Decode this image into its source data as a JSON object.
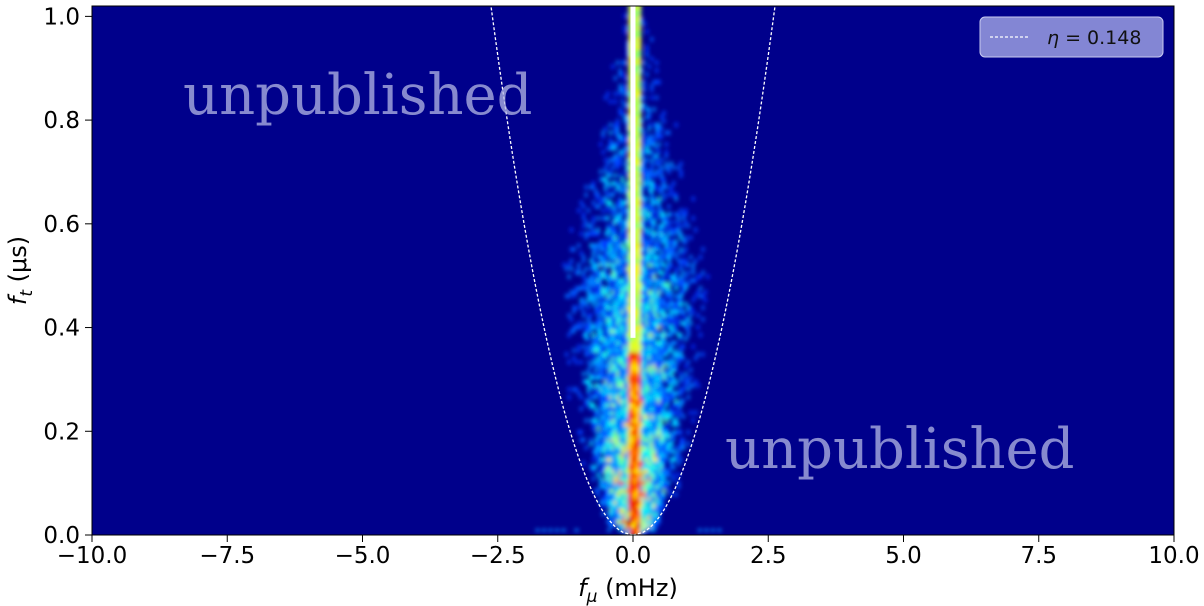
{
  "chart_data": {
    "type": "heatmap",
    "colormap": "jet",
    "background_color": "#00008b",
    "xlabel_symbol": "f",
    "xlabel_sub": "μ",
    "xlabel_unit": " (mHz)",
    "ylabel_symbol": "f",
    "ylabel_sub": "t",
    "ylabel_unit": " (μs)",
    "xlim": [
      -10.0,
      10.0
    ],
    "ylim": [
      0.0,
      1.02
    ],
    "xticks": [
      -10.0,
      -7.5,
      -5.0,
      -2.5,
      0.0,
      2.5,
      5.0,
      7.5,
      10.0
    ],
    "xtick_labels": [
      "−10.0",
      "−7.5",
      "−5.0",
      "−2.5",
      "0.0",
      "2.5",
      "5.0",
      "7.5",
      "10.0"
    ],
    "yticks": [
      0.0,
      0.2,
      0.4,
      0.6,
      0.8,
      1.0
    ],
    "ytick_labels": [
      "0.0",
      "0.2",
      "0.4",
      "0.6",
      "0.8",
      "1.0"
    ],
    "grid": false,
    "series": [
      {
        "name_symbol": "η",
        "name_value": " = 0.148",
        "style": "dashed",
        "color": "#ffffff",
        "curve": "x = ±sqrt(y / eta)",
        "eta": 0.148
      }
    ],
    "central_line": {
      "x": 0.0,
      "y_from": 0.38,
      "y_to": 1.02,
      "color": "#ffffff"
    },
    "legend_position": "top-right",
    "watermarks": [
      {
        "text": "unpublished",
        "position": "upper-left"
      },
      {
        "text": "unpublished",
        "position": "lower-right"
      }
    ]
  }
}
